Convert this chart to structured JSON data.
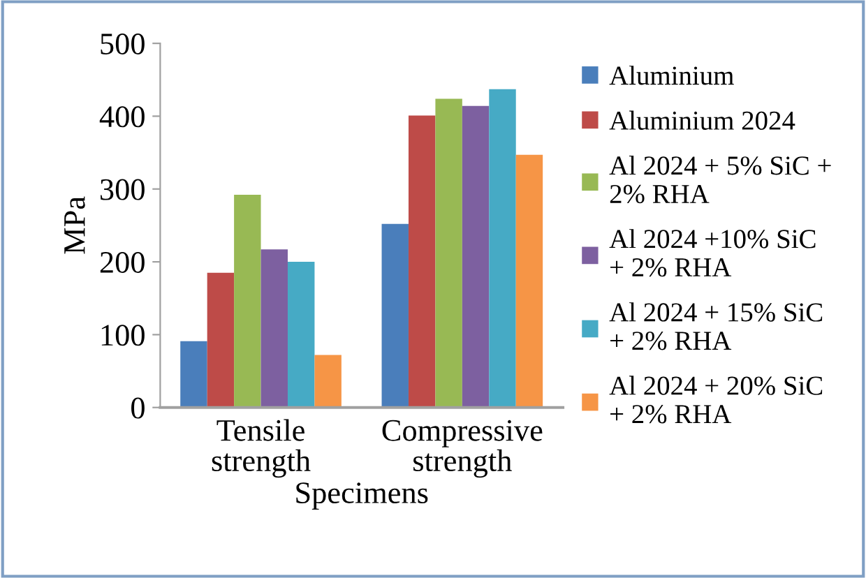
{
  "chart_data": {
    "type": "bar",
    "xlabel": "Specimens",
    "ylabel": "MPa",
    "categories": [
      "Tensile\nstrength",
      "Compressive\nstrength"
    ],
    "series": [
      {
        "name": "Aluminium",
        "color": "#4a7ebb",
        "values": [
          91,
          252
        ]
      },
      {
        "name": "Aluminium 2024",
        "color": "#be4b48",
        "values": [
          185,
          401
        ]
      },
      {
        "name": "Al 2024 + 5% SiC +\n2% RHA",
        "color": "#98b954",
        "values": [
          292,
          424
        ]
      },
      {
        "name": "Al 2024 +10% SiC\n+ 2% RHA",
        "color": "#7d60a0",
        "values": [
          217,
          414
        ]
      },
      {
        "name": "Al 2024 + 15% SiC\n+ 2% RHA",
        "color": "#46aac5",
        "values": [
          200,
          437
        ]
      },
      {
        "name": "Al 2024 + 20% SiC\n+ 2% RHA",
        "color": "#f69546",
        "values": [
          72,
          347
        ]
      }
    ],
    "ylim": [
      0,
      500
    ],
    "yticks": [
      0,
      100,
      200,
      300,
      400,
      500
    ],
    "grid": false,
    "legend": "right"
  }
}
